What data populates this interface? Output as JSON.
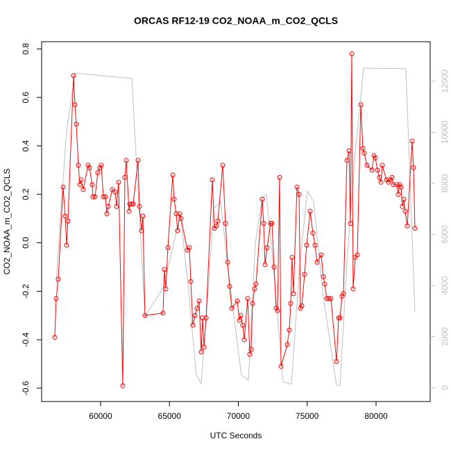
{
  "chart_data": {
    "type": "line",
    "title": "ORCAS RF12-19 CO2_NOAA_m_CO2_QCLS",
    "x_label": "UTC Seconds",
    "y_label": "CO2_NOAA_m_CO2_QCLS",
    "xlim": [
      55720,
      83930
    ],
    "xticks": [
      60000,
      65000,
      70000,
      75000,
      80000
    ],
    "ylim": [
      -0.655,
      0.83
    ],
    "yticks": [
      -0.6,
      -0.4,
      -0.2,
      {
        "value": 0,
        "label": "0.0"
      },
      0.2,
      0.4,
      0.6,
      0.8
    ],
    "y2lim": [
      -544,
      13551
    ],
    "y2ticks": [
      0,
      2000,
      4000,
      6000,
      8000,
      10000,
      12000
    ],
    "series": [
      {
        "color": "#ff0000",
        "points": true,
        "x": [
          56675,
          56776,
          56927,
          57279,
          57431,
          57531,
          57632,
          58035,
          58136,
          58237,
          58388,
          58489,
          58589,
          58740,
          59093,
          59194,
          59395,
          59446,
          59597,
          59798,
          59950,
          60050,
          60202,
          60353,
          60453,
          60554,
          60856,
          61058,
          61159,
          61310,
          61612,
          61763,
          61864,
          62066,
          62116,
          62267,
          62368,
          62721,
          62821,
          62972,
          63073,
          63224,
          64534,
          64635,
          64736,
          64887,
          65240,
          65340,
          65491,
          65592,
          65743,
          65844,
          66298,
          66449,
          66549,
          66701,
          66852,
          67003,
          67154,
          67305,
          67406,
          67507,
          67658,
          68111,
          68262,
          68413,
          68514,
          68867,
          69068,
          69220,
          69371,
          69522,
          69925,
          70076,
          70177,
          70328,
          70429,
          70681,
          70832,
          70932,
          71033,
          71184,
          71285,
          71739,
          71839,
          71940,
          72091,
          72343,
          72444,
          72595,
          72746,
          72847,
          72998,
          73099,
          73552,
          73703,
          73804,
          73905,
          74006,
          74258,
          74409,
          74509,
          74610,
          74812,
          74963,
          75215,
          75416,
          75567,
          75719,
          76021,
          76172,
          76273,
          76424,
          76575,
          76726,
          77129,
          77280,
          77381,
          77532,
          77633,
          77885,
          78036,
          78137,
          78238,
          78338,
          78489,
          78641,
          78893,
          79044,
          79144,
          79346,
          79699,
          79850,
          79950,
          80102,
          80253,
          80354,
          80454,
          80757,
          80908,
          81008,
          81160,
          81260,
          81512,
          81613,
          81714,
          81815,
          81915,
          82016,
          82117,
          82268,
          82621,
          82721,
          82822
        ],
        "values": [
          -0.39,
          -0.23,
          -0.15,
          0.23,
          0.11,
          -0.01,
          0.09,
          0.69,
          0.57,
          0.49,
          0.32,
          0.24,
          0.26,
          0.22,
          0.32,
          0.31,
          0.24,
          0.19,
          0.19,
          0.29,
          0.31,
          0.32,
          0.19,
          0.19,
          0.12,
          0.15,
          0.22,
          0.21,
          0.15,
          0.25,
          -0.59,
          0.27,
          0.34,
          0.13,
          0.16,
          0.16,
          0.16,
          0.34,
          0.15,
          0.05,
          0.11,
          -0.3,
          -0.29,
          -0.11,
          -0.19,
          -0.02,
          0.28,
          0.18,
          0.12,
          0.05,
          0.12,
          0.1,
          -0.03,
          -0.02,
          -0.16,
          -0.34,
          -0.3,
          -0.27,
          -0.24,
          -0.45,
          -0.31,
          -0.43,
          -0.31,
          0.26,
          0.06,
          0.07,
          0.09,
          0.32,
          0.08,
          -0.08,
          -0.18,
          -0.27,
          -0.24,
          -0.32,
          -0.3,
          -0.34,
          -0.4,
          -0.23,
          -0.46,
          -0.44,
          -0.25,
          -0.19,
          -0.17,
          0.18,
          0.08,
          -0.09,
          -0.02,
          0.08,
          0.08,
          -0.1,
          -0.27,
          -0.28,
          0.27,
          -0.51,
          -0.42,
          -0.36,
          -0.25,
          -0.06,
          -0.21,
          0.23,
          0.2,
          -0.27,
          -0.26,
          -0.13,
          -0.01,
          0.13,
          0.04,
          -0.01,
          -0.08,
          -0.05,
          -0.14,
          -0.17,
          -0.23,
          -0.23,
          -0.23,
          -0.49,
          -0.31,
          -0.31,
          -0.22,
          -0.21,
          0.34,
          0.38,
          0.08,
          0.78,
          -0.19,
          -0.06,
          -0.05,
          0.57,
          0.39,
          0.37,
          0.32,
          0.3,
          0.36,
          0.35,
          0.3,
          0.27,
          0.25,
          0.32,
          0.26,
          0.25,
          0.26,
          0.27,
          0.24,
          0.24,
          0.2,
          0.24,
          0.23,
          0.15,
          0.18,
          0.13,
          0.07,
          0.42,
          0.31,
          0.06
        ]
      },
      {
        "color": "#bebebe",
        "axis": "y2",
        "points": false,
        "x": [
          56776,
          57128,
          57531,
          58136,
          62267,
          63224,
          64534,
          65794,
          66298,
          66952,
          67305,
          67809,
          68212,
          68716,
          69320,
          70227,
          70731,
          71235,
          71739,
          72041,
          72595,
          73250,
          73855,
          74459,
          75013,
          75467,
          76122,
          77129,
          77381,
          77885,
          78489,
          79094,
          82167,
          82822
        ],
        "values": [
          4027,
          7020,
          10014,
          12327,
          12109,
          2803,
          3891,
          6748,
          4299,
          490,
          163,
          3755,
          7020,
          7292,
          4299,
          490,
          299,
          5660,
          7429,
          7565,
          4435,
          218,
          136,
          4844,
          7701,
          7292,
          3755,
          82,
          82,
          4844,
          9197,
          12517,
          12490,
          2993
        ]
      }
    ]
  }
}
